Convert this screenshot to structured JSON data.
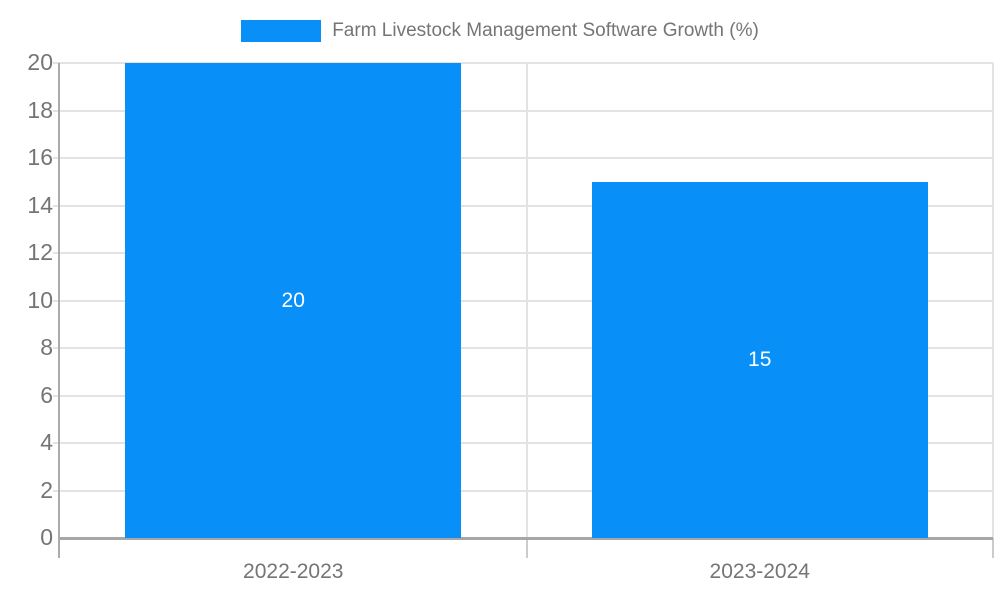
{
  "legend": {
    "label": "Farm Livestock Management Software Growth (%)"
  },
  "chart_data": {
    "type": "bar",
    "title": "Farm Livestock Management Software Growth (%)",
    "categories": [
      "2022-2023",
      "2023-2024"
    ],
    "values": [
      20,
      15
    ],
    "data_labels": [
      "20",
      "15"
    ],
    "xlabel": "",
    "ylabel": "",
    "ylim": [
      0,
      20
    ],
    "ytick_step": 2,
    "yticks": [
      0,
      2,
      4,
      6,
      8,
      10,
      12,
      14,
      16,
      18,
      20
    ],
    "grid": true,
    "legend_position": "top",
    "colors": {
      "bar": "#0890f8",
      "bar_label": "#ffffff",
      "axis_text": "#757575",
      "gridline": "#e3e3e3",
      "axis_line": "#ababab",
      "background": "#ffffff"
    }
  }
}
